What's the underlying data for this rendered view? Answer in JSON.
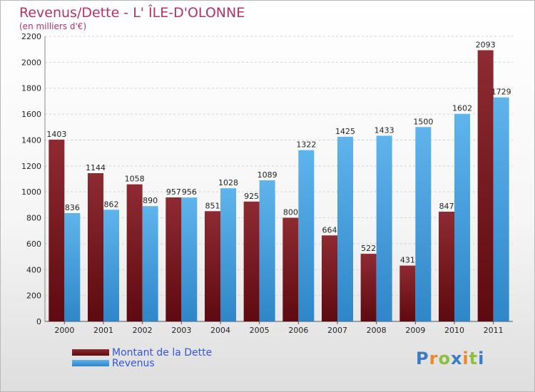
{
  "title": "Revenus/Dette - L' ÎLE-D'OLONNE",
  "subtitle": "(en milliers d'€)",
  "logo": {
    "letters": [
      "P",
      "r",
      "o",
      "x",
      "i",
      "t",
      "i"
    ],
    "colors": [
      "#3b7bc6",
      "#e8892b",
      "#8cbf3f",
      "#3b7bc6",
      "#e8892b",
      "#8cbf3f",
      "#3b7bc6"
    ]
  },
  "chart_data": {
    "type": "bar",
    "categories": [
      "2000",
      "2001",
      "2002",
      "2003",
      "2004",
      "2005",
      "2006",
      "2007",
      "2008",
      "2009",
      "2010",
      "2011"
    ],
    "series": [
      {
        "name": "Montant de la Dette",
        "color": "#7a1a1e",
        "values": [
          1403,
          1144,
          1058,
          957,
          851,
          925,
          800,
          664,
          522,
          431,
          847,
          2093
        ]
      },
      {
        "name": "Revenus",
        "color": "#4ea6e4",
        "values": [
          836,
          862,
          890,
          956,
          1028,
          1089,
          1322,
          1425,
          1433,
          1500,
          1602,
          1729
        ]
      }
    ],
    "ylim": [
      0,
      2200
    ],
    "yticks": [
      0,
      200,
      400,
      600,
      800,
      1000,
      1200,
      1400,
      1600,
      1800,
      2000,
      2200
    ],
    "grid": true,
    "legend_position": "bottom-left"
  }
}
